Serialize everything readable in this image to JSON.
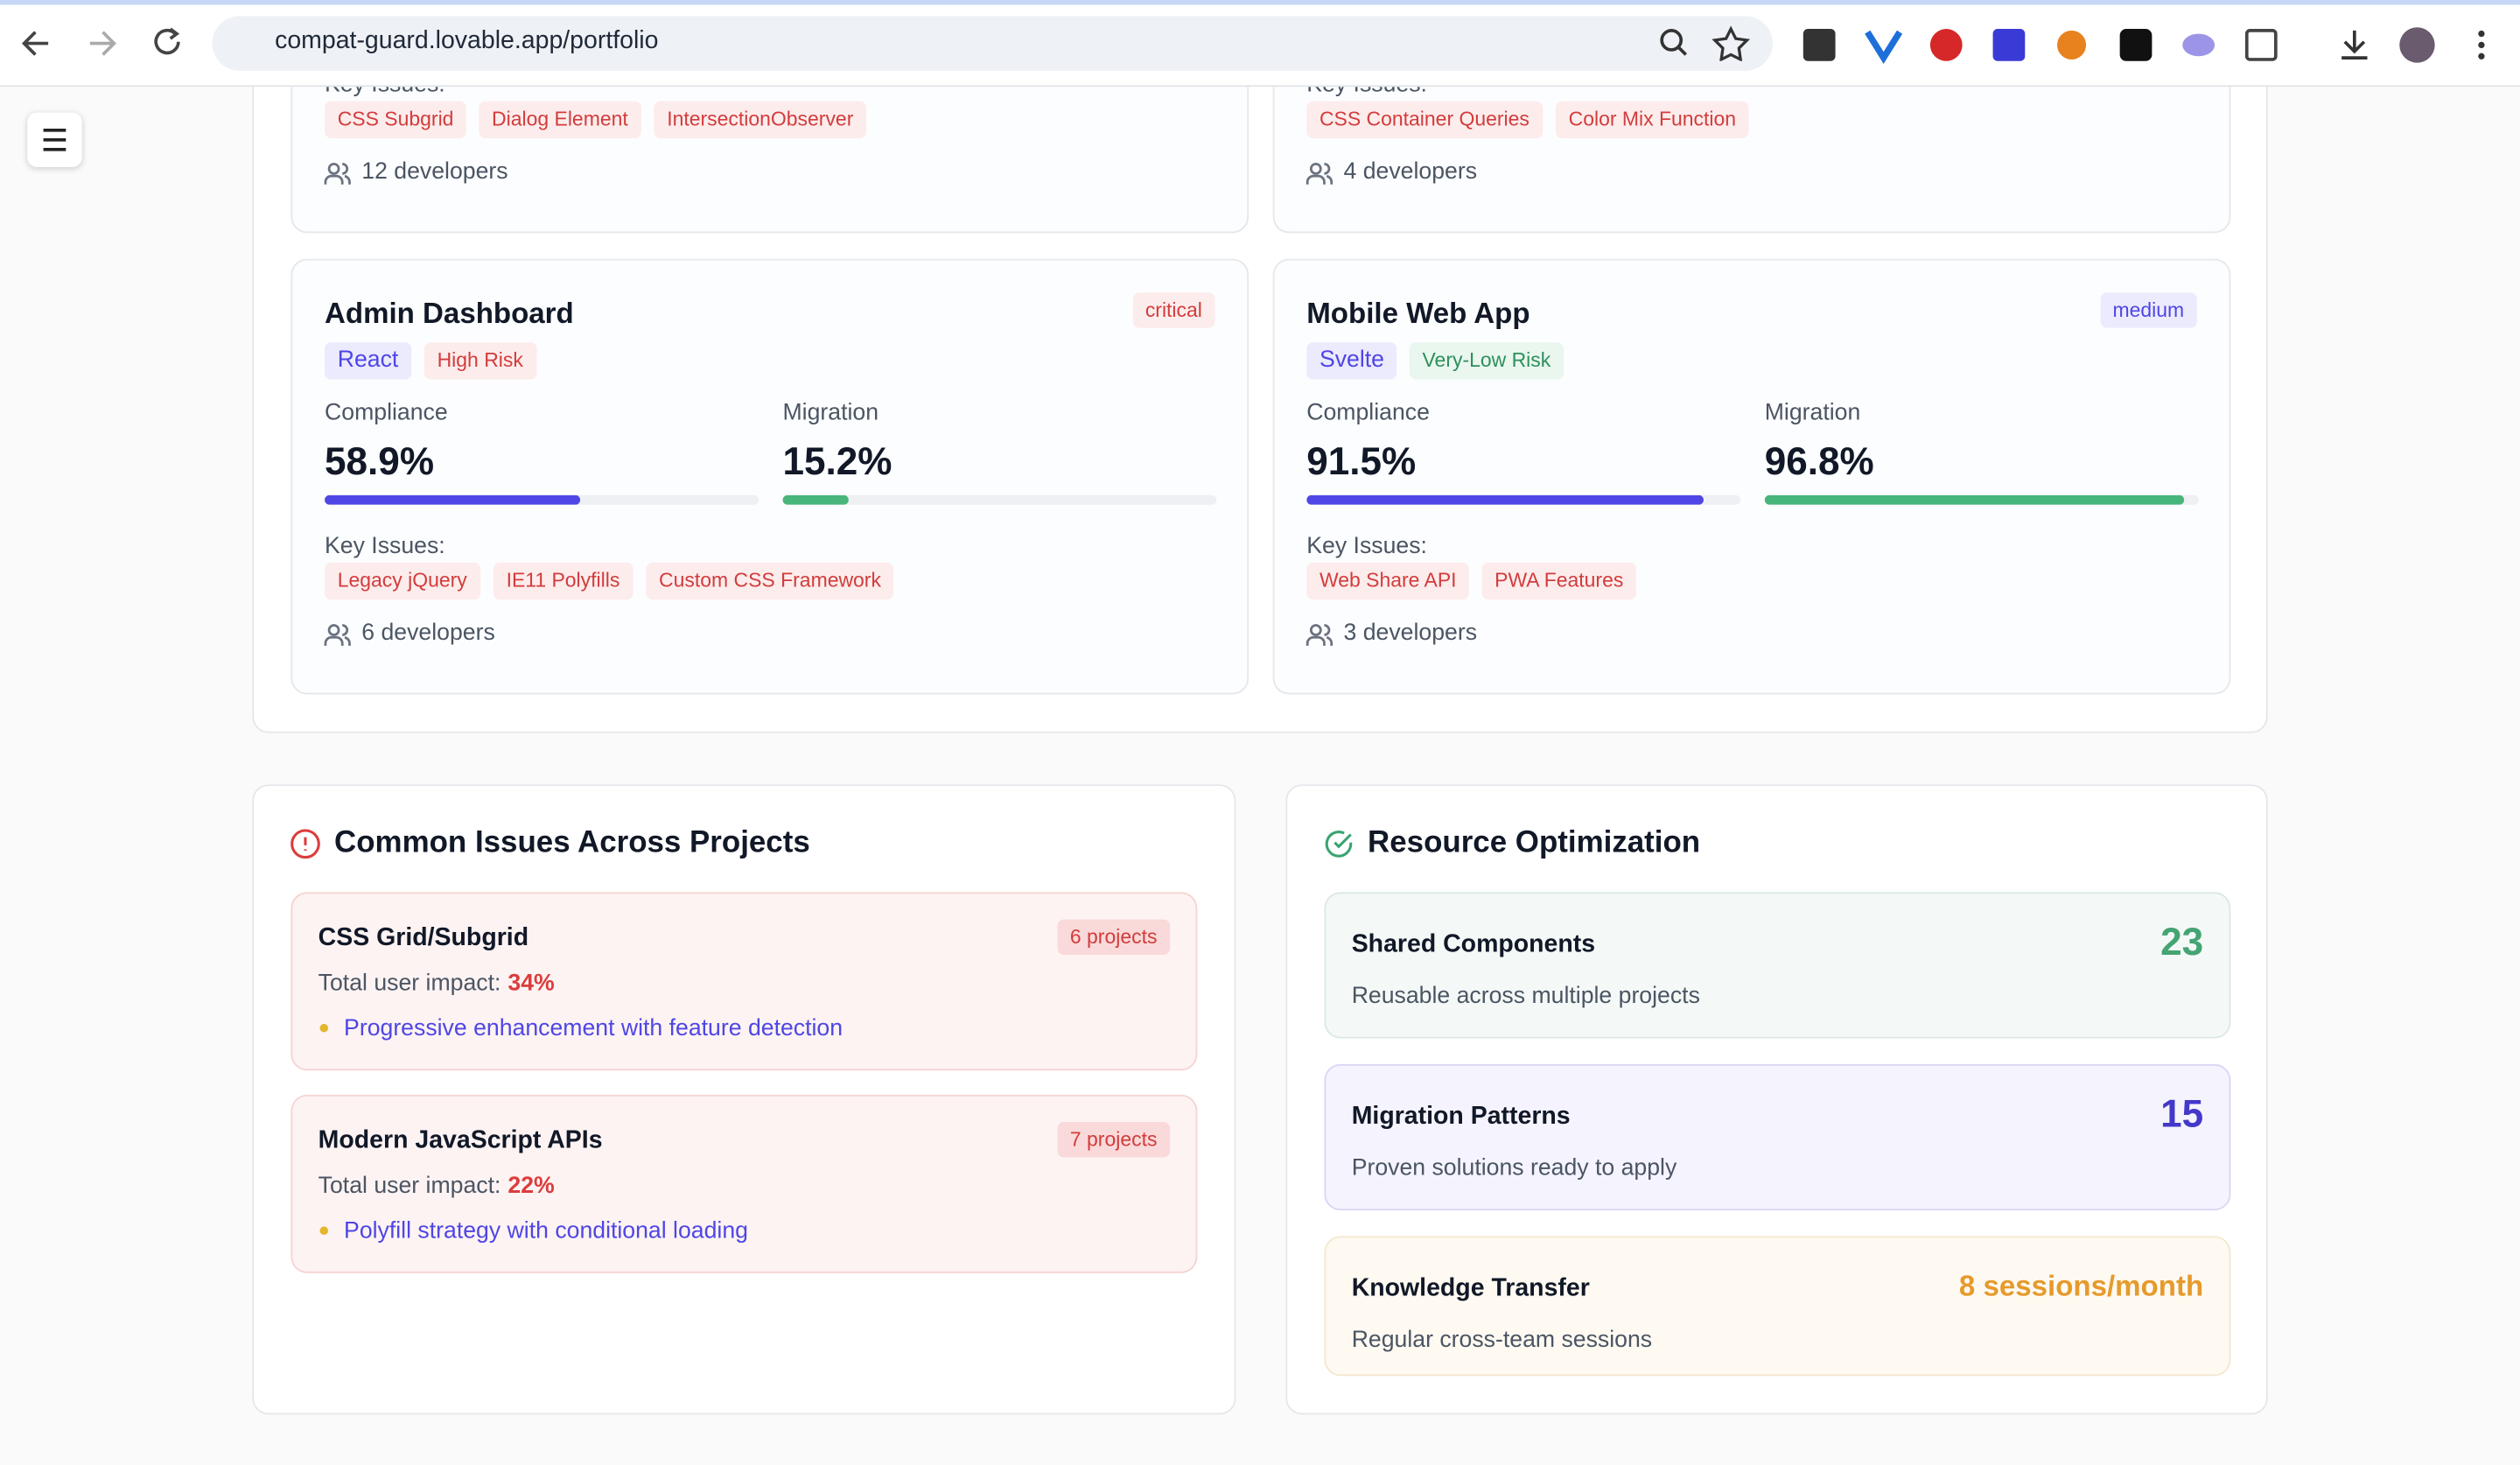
{
  "browser": {
    "url": "compat-guard.lovable.app/portfolio"
  },
  "partial_projects": [
    {
      "key_issues_label": "Key Issues:",
      "issues": [
        "CSS Subgrid",
        "Dialog Element",
        "IntersectionObserver"
      ],
      "developers": "12 developers"
    },
    {
      "key_issues_label": "Key Issues:",
      "issues": [
        "CSS Container Queries",
        "Color Mix Function"
      ],
      "developers": "4 developers"
    }
  ],
  "projects": [
    {
      "name": "Admin Dashboard",
      "severity": "critical",
      "framework": "React",
      "risk": "High Risk",
      "compliance": {
        "label": "Compliance",
        "value": 58.9,
        "text": "58.9%"
      },
      "migration": {
        "label": "Migration",
        "value": 15.2,
        "text": "15.2%"
      },
      "key_issues_label": "Key Issues:",
      "issues": [
        "Legacy jQuery",
        "IE11 Polyfills",
        "Custom CSS Framework"
      ],
      "developers": "6 developers"
    },
    {
      "name": "Mobile Web App",
      "severity": "medium",
      "framework": "Svelte",
      "risk": "Very-Low Risk",
      "compliance": {
        "label": "Compliance",
        "value": 91.5,
        "text": "91.5%"
      },
      "migration": {
        "label": "Migration",
        "value": 96.8,
        "text": "96.8%"
      },
      "key_issues_label": "Key Issues:",
      "issues": [
        "Web Share API",
        "PWA Features"
      ],
      "developers": "3 developers"
    }
  ],
  "common_issues": {
    "title": "Common Issues Across Projects",
    "items": [
      {
        "name": "CSS Grid/Subgrid",
        "projects": "6 projects",
        "impact_label": "Total user impact:",
        "impact": "34%",
        "tip": "Progressive enhancement with feature detection"
      },
      {
        "name": "Modern JavaScript APIs",
        "projects": "7 projects",
        "impact_label": "Total user impact:",
        "impact": "22%",
        "tip": "Polyfill strategy with conditional loading"
      }
    ]
  },
  "resource_optimization": {
    "title": "Resource Optimization",
    "items": [
      {
        "name": "Shared Components",
        "value": 23,
        "description": "Reusable across multiple projects"
      },
      {
        "name": "Migration Patterns",
        "value": 15,
        "description": "Proven solutions ready to apply"
      },
      {
        "name": "Knowledge Transfer",
        "value": "8 sessions/month",
        "description": "Regular cross-team sessions"
      }
    ]
  }
}
